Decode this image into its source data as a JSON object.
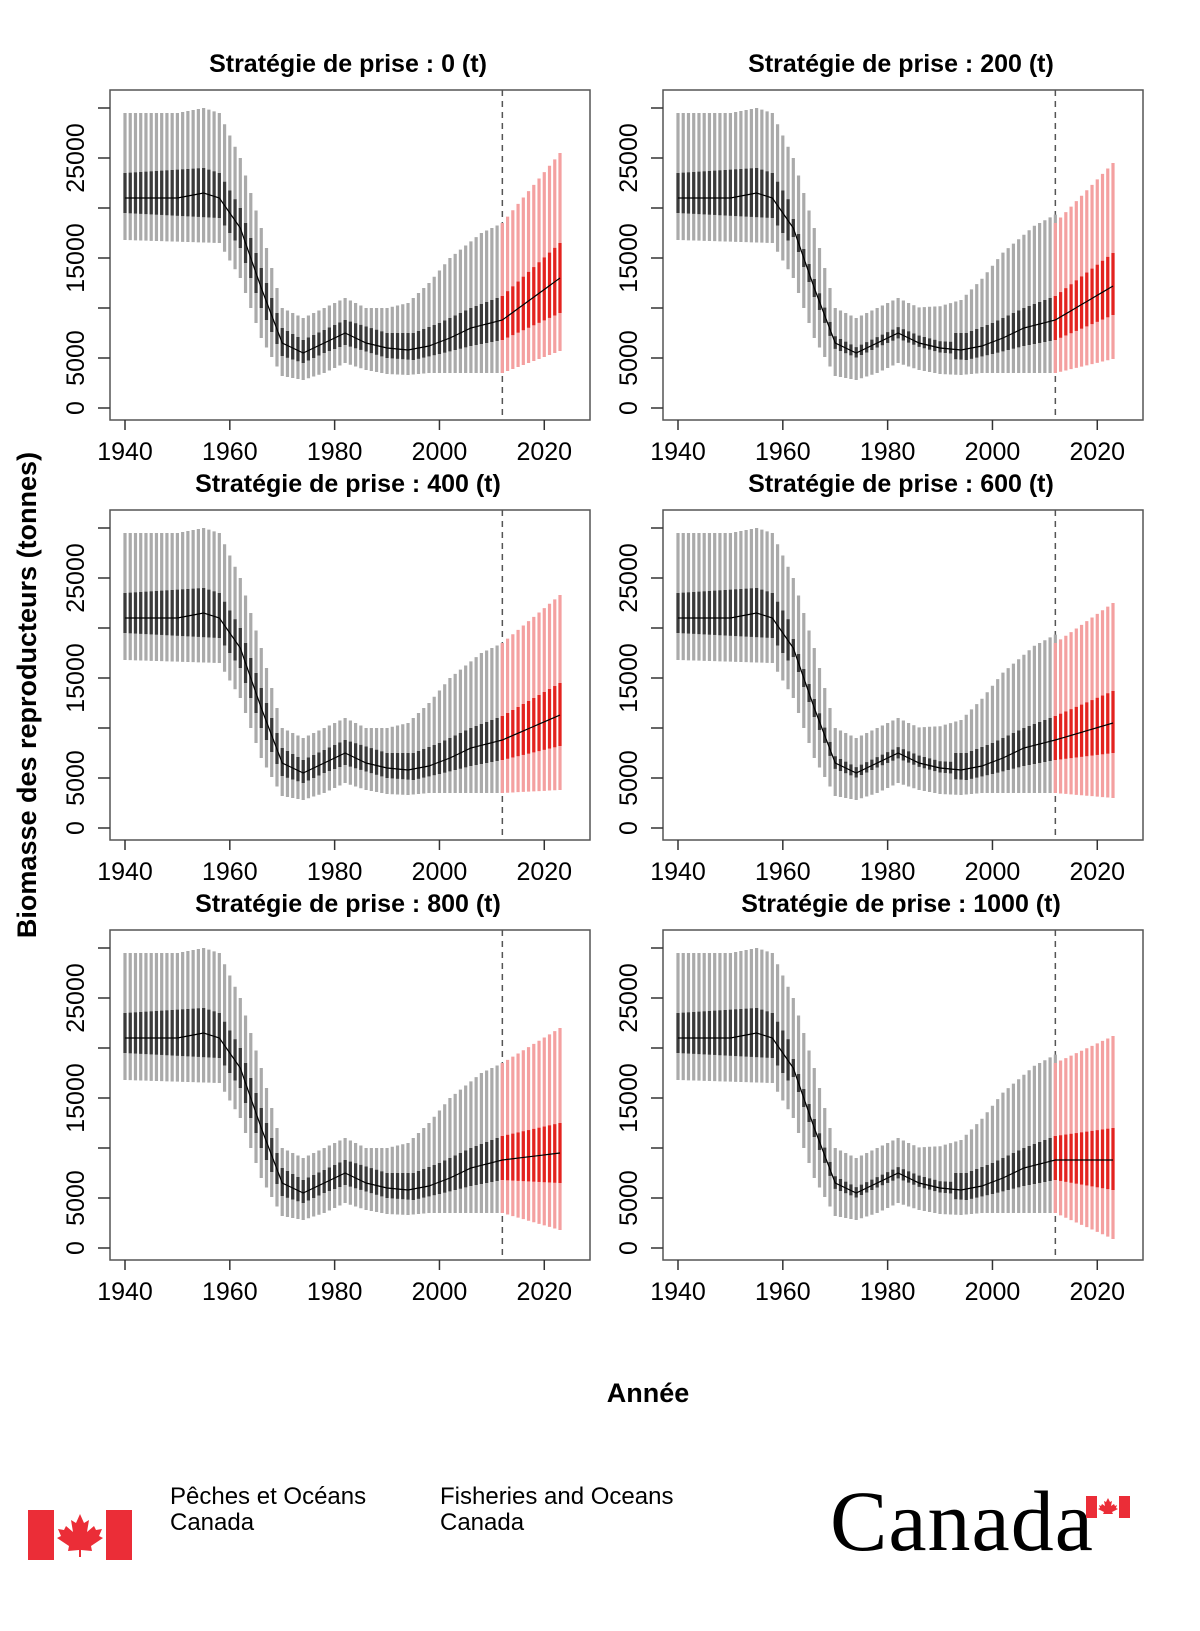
{
  "chart_data": {
    "type": "line",
    "ylabel": "Biomasse des reproducteurs (tonnes)",
    "xlabel": "Année",
    "x_ticks": [
      1940,
      1960,
      1980,
      2000,
      2020
    ],
    "y_ticks": [
      "0",
      "5000",
      "15000",
      "25000"
    ],
    "y_major_ticks": [
      0,
      5000,
      10000,
      15000,
      20000,
      25000,
      30000
    ],
    "xlim": [
      1937,
      2026
    ],
    "ylim": [
      -1000,
      31000
    ],
    "projection_start_year": 2012,
    "projection_end_year": 2023,
    "colors": {
      "historical_outer": "#aaaaaa",
      "historical_inner": "#3a3a3a",
      "median": "#000000",
      "projection_outer": "#f4a0a0",
      "projection_inner": "#e3231f",
      "vline": "#555555"
    },
    "panels": [
      {
        "title": "Stratégie de prise : 0 (t)",
        "catch": 0,
        "proj_end_median": 13000,
        "proj_end_lo": 5700,
        "proj_end_hi": 25500,
        "proj_end_in_lo": 9500,
        "proj_end_in_hi": 16500,
        "variant": "A"
      },
      {
        "title": "Stratégie de prise : 200 (t)",
        "catch": 200,
        "proj_end_median": 12200,
        "proj_end_lo": 4900,
        "proj_end_hi": 24500,
        "proj_end_in_lo": 9300,
        "proj_end_in_hi": 15500,
        "variant": "B"
      },
      {
        "title": "Stratégie de prise : 400 (t)",
        "catch": 400,
        "proj_end_median": 11300,
        "proj_end_lo": 3800,
        "proj_end_hi": 23300,
        "proj_end_in_lo": 8200,
        "proj_end_in_hi": 14500,
        "variant": "A"
      },
      {
        "title": "Stratégie de prise : 600 (t)",
        "catch": 600,
        "proj_end_median": 10500,
        "proj_end_lo": 3000,
        "proj_end_hi": 22500,
        "proj_end_in_lo": 7500,
        "proj_end_in_hi": 13700,
        "variant": "B"
      },
      {
        "title": "Stratégie de prise : 800 (t)",
        "catch": 800,
        "proj_end_median": 9500,
        "proj_end_lo": 1800,
        "proj_end_hi": 22000,
        "proj_end_in_lo": 6500,
        "proj_end_in_hi": 12500,
        "variant": "A"
      },
      {
        "title": "Stratégie de prise : 1000 (t)",
        "catch": 1000,
        "proj_end_median": 8800,
        "proj_end_lo": 900,
        "proj_end_hi": 21200,
        "proj_end_in_lo": 5800,
        "proj_end_in_hi": 12000,
        "variant": "B"
      }
    ]
  },
  "footer": {
    "dept_fr_line1": "Pêches et Océans",
    "dept_fr_line2": "Canada",
    "dept_en_line1": "Fisheries and Oceans",
    "dept_en_line2": "Canada",
    "wordmark": "Canada"
  }
}
